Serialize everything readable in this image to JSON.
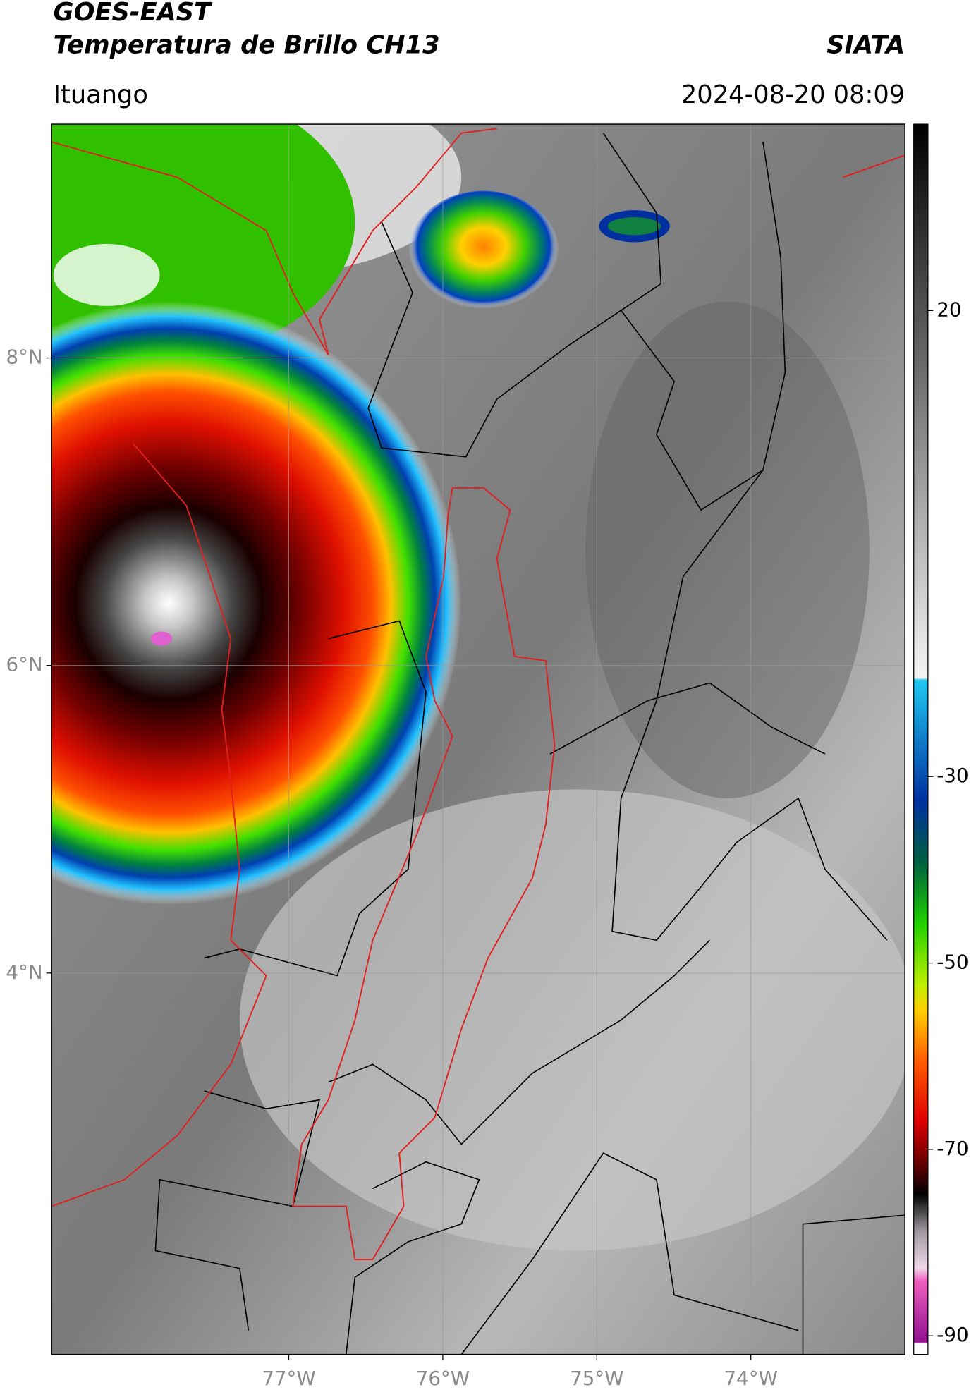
{
  "header": {
    "title": "GOES-EAST",
    "subtitle": "Temperatura de Brillo CH13",
    "source": "SIATA",
    "location": "Ituango",
    "timestamp": "2024-08-20 08:09"
  },
  "map": {
    "xlim": [
      -78.54,
      -73.0
    ],
    "ylim": [
      1.52,
      9.52
    ],
    "xticks": [
      {
        "value": -77,
        "label": "77°W"
      },
      {
        "value": -76,
        "label": "76°W"
      },
      {
        "value": -75,
        "label": "75°W"
      },
      {
        "value": -74,
        "label": "74°W"
      }
    ],
    "yticks": [
      {
        "value": 8,
        "label": "8°N"
      },
      {
        "value": 6,
        "label": "6°N"
      },
      {
        "value": 4,
        "label": "4°N"
      }
    ]
  },
  "colorbar": {
    "vlim": [
      -92,
      40
    ],
    "ticks": [
      20,
      -30,
      -50,
      -70,
      -90
    ]
  }
}
